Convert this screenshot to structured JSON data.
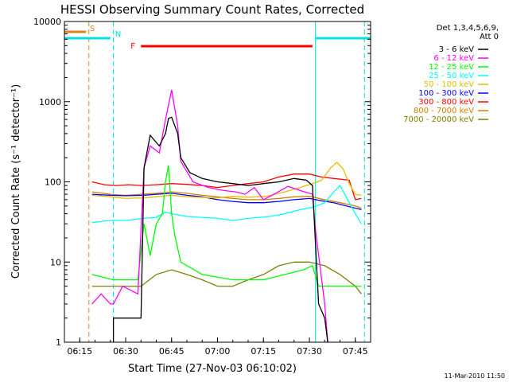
{
  "chart_data": {
    "type": "line",
    "title": "HESSI Observing Summary Count Rates, Corrected",
    "xlabel": "Start Time (27-Nov-03 06:10:02)",
    "ylabel": "Corrected Count Rate (s⁻¹ detector⁻¹)",
    "yscale": "log",
    "ylim": [
      1,
      10000
    ],
    "xlim": [
      "06:10",
      "07:50"
    ],
    "x_ticks": [
      "06:15",
      "06:30",
      "06:45",
      "07:00",
      "07:15",
      "07:30",
      "07:45"
    ],
    "y_ticks": [
      "1",
      "10",
      "100",
      "1000",
      "10000"
    ],
    "legend_header": [
      "Det 1,3,4,5,6,9,",
      "Att 0"
    ],
    "legend_position": "right",
    "footer": "11-Mar-2010 11:50",
    "flag_bars": [
      {
        "label": "S",
        "color": "#e08020",
        "start": "06:10",
        "end": "06:17"
      },
      {
        "label": "N",
        "color": "#00e0e0",
        "start": "06:10",
        "end": "06:25"
      },
      {
        "label": "F",
        "color": "#ff0000",
        "start": "06:35",
        "end": "07:31"
      },
      {
        "label": "",
        "color": "#00e0e0",
        "start": "07:32",
        "end": "07:50"
      }
    ],
    "vertical_lines": [
      {
        "time": "06:18",
        "color": "#e08020",
        "style": "dashed"
      },
      {
        "time": "06:26",
        "color": "#00e0e0",
        "style": "dashed"
      },
      {
        "time": "07:32",
        "color": "#00e0e0",
        "style": "solid"
      },
      {
        "time": "07:48",
        "color": "#00e0e0",
        "style": "dashed"
      },
      {
        "time": "06:10",
        "color": "#00e0e0",
        "style": "solid"
      }
    ],
    "series": [
      {
        "name": "3 - 6 keV",
        "color": "#000000",
        "points": [
          [
            "06:26",
            1
          ],
          [
            "06:26",
            2
          ],
          [
            "06:28",
            2
          ],
          [
            "06:35",
            2
          ],
          [
            "06:36",
            150
          ],
          [
            "06:38",
            380
          ],
          [
            "06:41",
            280
          ],
          [
            "06:43",
            400
          ],
          [
            "06:44",
            620
          ],
          [
            "06:45",
            640
          ],
          [
            "06:47",
            400
          ],
          [
            "06:48",
            200
          ],
          [
            "06:51",
            130
          ],
          [
            "06:55",
            110
          ],
          [
            "07:00",
            100
          ],
          [
            "07:05",
            95
          ],
          [
            "07:10",
            90
          ],
          [
            "07:15",
            95
          ],
          [
            "07:20",
            100
          ],
          [
            "07:25",
            110
          ],
          [
            "07:29",
            105
          ],
          [
            "07:31",
            90
          ],
          [
            "07:33",
            3
          ],
          [
            "07:35",
            2
          ],
          [
            "07:36",
            1
          ]
        ]
      },
      {
        "name": "6 - 12 keV",
        "color": "#ff00ff",
        "points": [
          [
            "06:19",
            3
          ],
          [
            "06:22",
            4
          ],
          [
            "06:25",
            3
          ],
          [
            "06:26",
            3
          ],
          [
            "06:29",
            5
          ],
          [
            "06:34",
            4
          ],
          [
            "06:36",
            150
          ],
          [
            "06:38",
            280
          ],
          [
            "06:41",
            230
          ],
          [
            "06:43",
            600
          ],
          [
            "06:45",
            1400
          ],
          [
            "06:47",
            500
          ],
          [
            "06:48",
            180
          ],
          [
            "06:52",
            100
          ],
          [
            "06:57",
            85
          ],
          [
            "07:02",
            78
          ],
          [
            "07:06",
            75
          ],
          [
            "07:09",
            70
          ],
          [
            "07:12",
            85
          ],
          [
            "07:15",
            60
          ],
          [
            "07:19",
            72
          ],
          [
            "07:23",
            88
          ],
          [
            "07:27",
            78
          ],
          [
            "07:31",
            70
          ],
          [
            "07:32",
            25
          ],
          [
            "07:35",
            3
          ],
          [
            "07:36",
            1
          ]
        ]
      },
      {
        "name": "12 - 25 keV",
        "color": "#00ff00",
        "points": [
          [
            "06:19",
            7
          ],
          [
            "06:26",
            6
          ],
          [
            "06:30",
            6
          ],
          [
            "06:34",
            6
          ],
          [
            "06:36",
            30
          ],
          [
            "06:38",
            12
          ],
          [
            "06:40",
            30
          ],
          [
            "06:42",
            40
          ],
          [
            "06:43",
            100
          ],
          [
            "06:44",
            160
          ],
          [
            "06:45",
            40
          ],
          [
            "06:46",
            22
          ],
          [
            "06:48",
            10
          ],
          [
            "06:55",
            7
          ],
          [
            "07:05",
            6
          ],
          [
            "07:15",
            6
          ],
          [
            "07:22",
            7
          ],
          [
            "07:28",
            8
          ],
          [
            "07:31",
            9
          ],
          [
            "07:33",
            5
          ],
          [
            "07:40",
            5
          ],
          [
            "07:47",
            5
          ]
        ]
      },
      {
        "name": "25 - 50 keV",
        "color": "#00ffff",
        "points": [
          [
            "06:19",
            31
          ],
          [
            "06:25",
            33
          ],
          [
            "06:30",
            33
          ],
          [
            "06:36",
            35
          ],
          [
            "06:40",
            36
          ],
          [
            "06:43",
            42
          ],
          [
            "06:45",
            40
          ],
          [
            "06:50",
            37
          ],
          [
            "07:00",
            35
          ],
          [
            "07:05",
            33
          ],
          [
            "07:10",
            35
          ],
          [
            "07:17",
            37
          ],
          [
            "07:22",
            40
          ],
          [
            "07:27",
            45
          ],
          [
            "07:31",
            48
          ],
          [
            "07:35",
            55
          ],
          [
            "07:38",
            75
          ],
          [
            "07:40",
            90
          ],
          [
            "07:42",
            65
          ],
          [
            "07:45",
            40
          ],
          [
            "07:47",
            30
          ]
        ]
      },
      {
        "name": "50 - 100 keV",
        "color": "#e0c000",
        "points": [
          [
            "06:19",
            68
          ],
          [
            "06:25",
            65
          ],
          [
            "06:30",
            62
          ],
          [
            "06:35",
            63
          ],
          [
            "06:40",
            65
          ],
          [
            "06:45",
            68
          ],
          [
            "06:50",
            65
          ],
          [
            "07:00",
            63
          ],
          [
            "07:05",
            66
          ],
          [
            "07:10",
            64
          ],
          [
            "07:16",
            66
          ],
          [
            "07:22",
            75
          ],
          [
            "07:27",
            85
          ],
          [
            "07:31",
            95
          ],
          [
            "07:34",
            105
          ],
          [
            "07:37",
            150
          ],
          [
            "07:39",
            175
          ],
          [
            "07:41",
            145
          ],
          [
            "07:43",
            95
          ],
          [
            "07:45",
            70
          ],
          [
            "07:47",
            68
          ]
        ]
      },
      {
        "name": "100 - 300 keV",
        "color": "#0000ff",
        "points": [
          [
            "06:19",
            70
          ],
          [
            "06:25",
            68
          ],
          [
            "06:30",
            67
          ],
          [
            "06:36",
            68
          ],
          [
            "06:40",
            70
          ],
          [
            "06:45",
            72
          ],
          [
            "06:50",
            68
          ],
          [
            "06:55",
            65
          ],
          [
            "07:00",
            60
          ],
          [
            "07:05",
            57
          ],
          [
            "07:10",
            55
          ],
          [
            "07:15",
            55
          ],
          [
            "07:20",
            57
          ],
          [
            "07:25",
            60
          ],
          [
            "07:30",
            62
          ],
          [
            "07:34",
            58
          ],
          [
            "07:38",
            55
          ],
          [
            "07:42",
            50
          ],
          [
            "07:45",
            47
          ],
          [
            "07:47",
            45
          ]
        ]
      },
      {
        "name": "300 - 800 keV",
        "color": "#ff0000",
        "points": [
          [
            "06:19",
            100
          ],
          [
            "06:23",
            92
          ],
          [
            "06:27",
            90
          ],
          [
            "06:31",
            92
          ],
          [
            "06:35",
            90
          ],
          [
            "06:40",
            92
          ],
          [
            "06:45",
            95
          ],
          [
            "06:50",
            93
          ],
          [
            "06:55",
            90
          ],
          [
            "07:00",
            85
          ],
          [
            "07:05",
            90
          ],
          [
            "07:10",
            95
          ],
          [
            "07:15",
            100
          ],
          [
            "07:20",
            115
          ],
          [
            "07:25",
            125
          ],
          [
            "07:30",
            125
          ],
          [
            "07:34",
            115
          ],
          [
            "07:38",
            110
          ],
          [
            "07:43",
            105
          ],
          [
            "07:45",
            60
          ],
          [
            "07:47",
            62
          ]
        ]
      },
      {
        "name": "800 - 7000 keV",
        "color": "#d08000",
        "points": [
          [
            "06:19",
            75
          ],
          [
            "06:25",
            70
          ],
          [
            "06:30",
            68
          ],
          [
            "06:35",
            70
          ],
          [
            "06:40",
            72
          ],
          [
            "06:45",
            75
          ],
          [
            "06:50",
            72
          ],
          [
            "06:55",
            68
          ],
          [
            "07:00",
            65
          ],
          [
            "07:05",
            62
          ],
          [
            "07:10",
            60
          ],
          [
            "07:15",
            60
          ],
          [
            "07:20",
            62
          ],
          [
            "07:25",
            65
          ],
          [
            "07:30",
            66
          ],
          [
            "07:35",
            60
          ],
          [
            "07:40",
            55
          ],
          [
            "07:45",
            50
          ],
          [
            "07:47",
            47
          ]
        ]
      },
      {
        "name": "7000 - 20000 keV",
        "color": "#808000",
        "points": [
          [
            "06:19",
            5
          ],
          [
            "06:25",
            5
          ],
          [
            "06:30",
            5
          ],
          [
            "06:35",
            5
          ],
          [
            "06:40",
            7
          ],
          [
            "06:45",
            8
          ],
          [
            "06:50",
            7
          ],
          [
            "06:55",
            6
          ],
          [
            "07:00",
            5
          ],
          [
            "07:05",
            5
          ],
          [
            "07:10",
            6
          ],
          [
            "07:15",
            7
          ],
          [
            "07:20",
            9
          ],
          [
            "07:25",
            10
          ],
          [
            "07:30",
            10
          ],
          [
            "07:35",
            9
          ],
          [
            "07:40",
            7
          ],
          [
            "07:45",
            5
          ],
          [
            "07:47",
            4
          ]
        ]
      }
    ]
  }
}
